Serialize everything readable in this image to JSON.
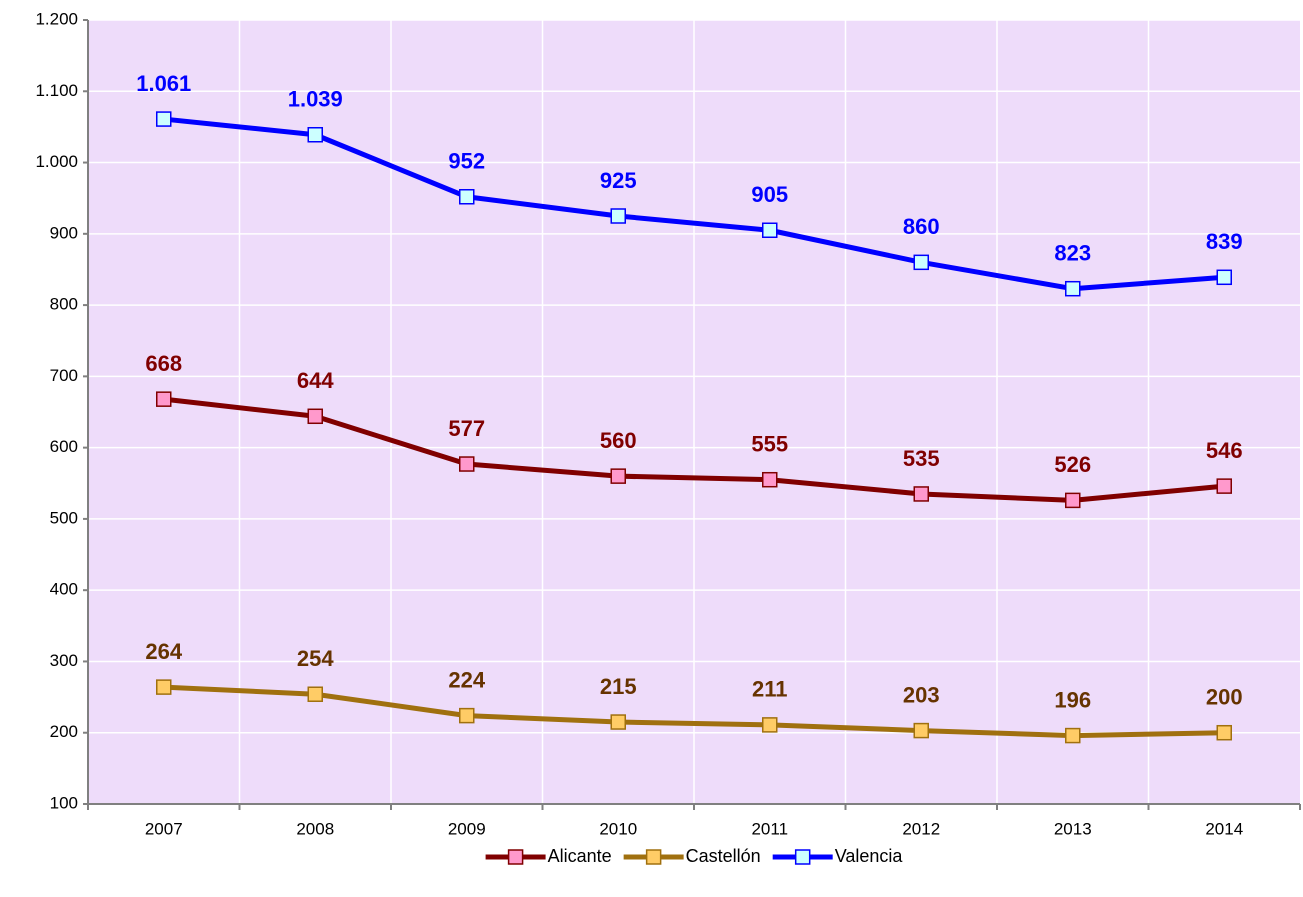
{
  "chart_data": {
    "type": "line",
    "categories": [
      "2007",
      "2008",
      "2009",
      "2010",
      "2011",
      "2012",
      "2013",
      "2014"
    ],
    "series": [
      {
        "name": "Alicante",
        "color": "#800000",
        "marker_color": "#ff99cc",
        "label_color": "#800000",
        "values": [
          668,
          644,
          577,
          560,
          555,
          535,
          526,
          546
        ]
      },
      {
        "name": "Castellón",
        "color": "#a0700f",
        "marker_color": "#ffcc66",
        "label_color": "#663300",
        "values": [
          264,
          254,
          224,
          215,
          211,
          203,
          196,
          200
        ]
      },
      {
        "name": "Valencia",
        "color": "#0000ff",
        "marker_color": "#ccffff",
        "label_color": "#0000ff",
        "values": [
          1061,
          1039,
          952,
          925,
          905,
          860,
          823,
          839
        ],
        "value_labels": [
          "1.061",
          "1.039",
          "952",
          "925",
          "905",
          "860",
          "823",
          "839"
        ]
      }
    ],
    "ylim": [
      100,
      1200
    ],
    "yticks": [
      100,
      200,
      300,
      400,
      500,
      600,
      700,
      800,
      900,
      {
        "value": 1000,
        "label": "1.000"
      },
      {
        "value": 1100,
        "label": "1.100"
      },
      {
        "value": 1200,
        "label": "1.200"
      }
    ],
    "grid": true,
    "legend": "bottom",
    "plot_background": "#eedcfa"
  }
}
